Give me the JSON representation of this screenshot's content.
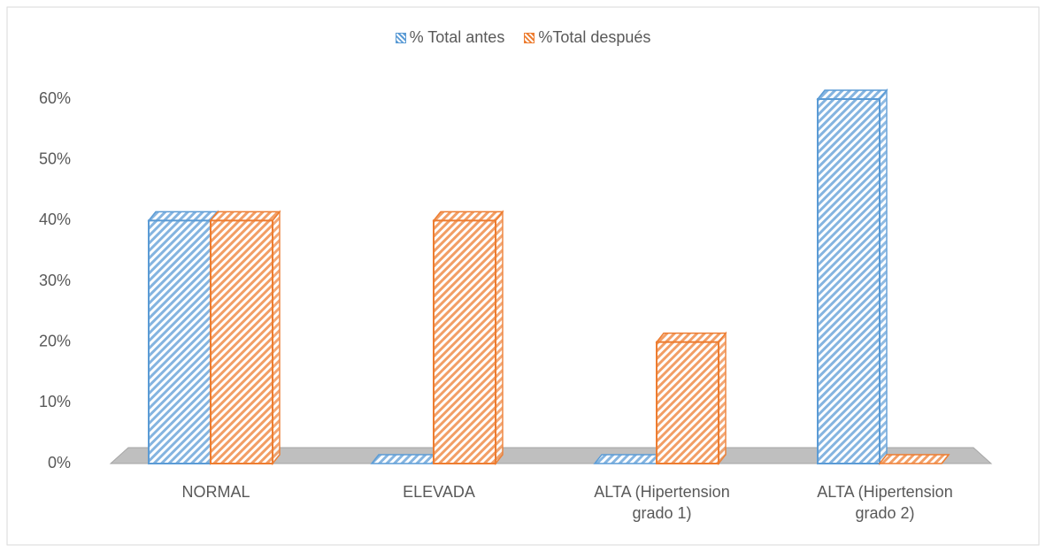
{
  "chart_data": {
    "type": "bar3d",
    "categories": [
      "NORMAL",
      "ELEVADA",
      "ALTA (Hipertension grado 1)",
      "ALTA (Hipertension grado 2)"
    ],
    "series": [
      {
        "name": "% Total antes",
        "color": "#5b9bd5",
        "values": [
          40,
          0,
          0,
          60
        ]
      },
      {
        "name": "%Total después",
        "color": "#ed7d31",
        "values": [
          40,
          40,
          20,
          0
        ]
      }
    ],
    "ylim": [
      0,
      60
    ],
    "yticks": [
      {
        "value": 0,
        "label": "0%"
      },
      {
        "value": 10,
        "label": "10%"
      },
      {
        "value": 20,
        "label": "20%"
      },
      {
        "value": 30,
        "label": "30%"
      },
      {
        "value": 40,
        "label": "40%"
      },
      {
        "value": 50,
        "label": "50%"
      },
      {
        "value": 60,
        "label": "60%"
      }
    ],
    "legend": "top"
  }
}
